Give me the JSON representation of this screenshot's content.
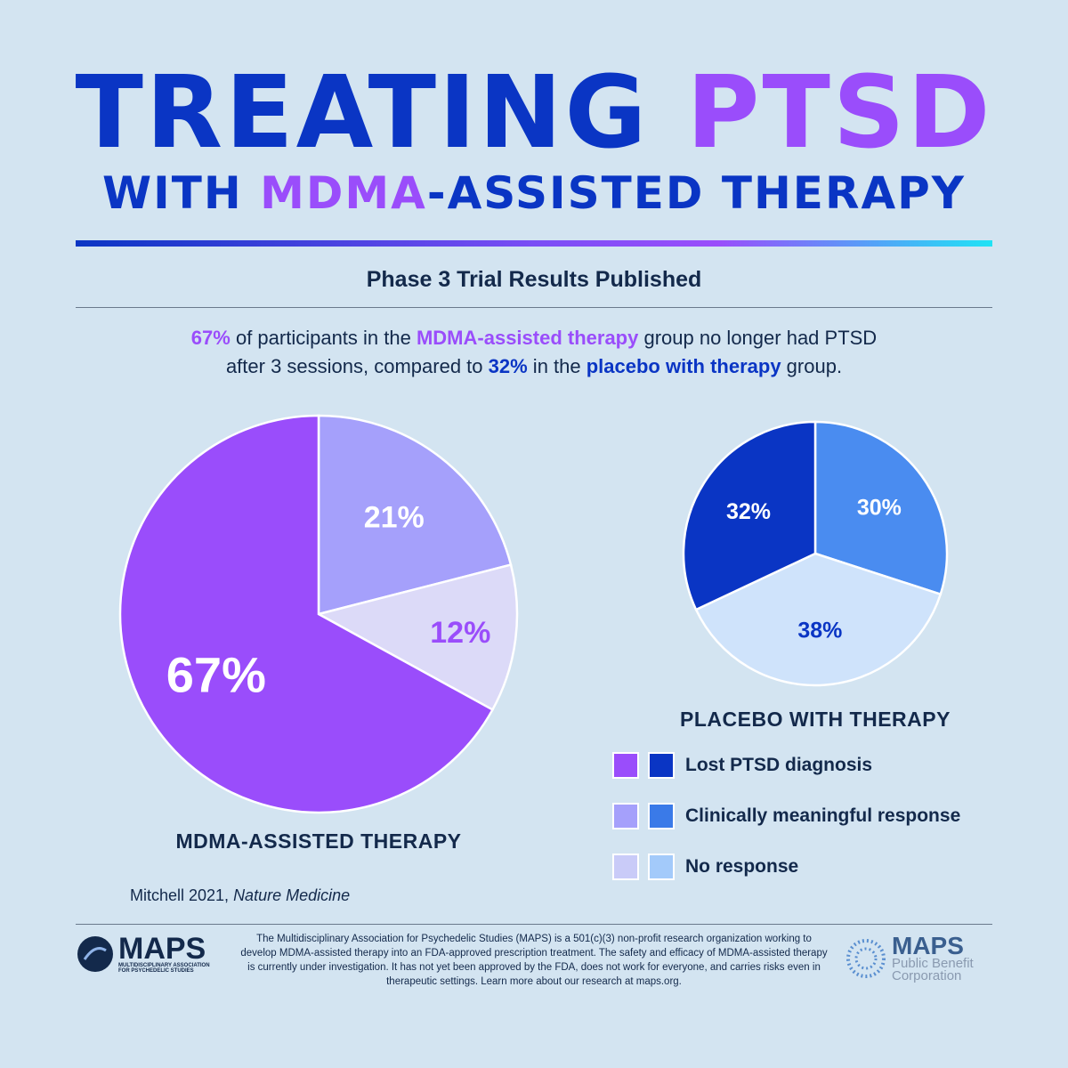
{
  "title": {
    "line1_a": "TREATING ",
    "line1_b": "PTSD",
    "line2_a": "WITH ",
    "line2_b": "MDMA",
    "line2_c": "-ASSISTED THERAPY"
  },
  "subtitle": "Phase 3 Trial Results Published",
  "description": {
    "p1": "67%",
    "p2": " of participants in the ",
    "p3": "MDMA-assisted therapy",
    "p4": " group no longer had PTSD",
    "p5": "after 3 sessions, compared to ",
    "p6": "32%",
    "p7": " in the ",
    "p8": "placebo with therapy",
    "p9": " group."
  },
  "colors": {
    "title_blue": "#0a35c4",
    "title_purple": "#9a4dfb",
    "text": "#13294b"
  },
  "chart_data": [
    {
      "type": "pie",
      "title": "MDMA-ASSISTED THERAPY",
      "categories": [
        "Clinically meaningful response",
        "No response",
        "Lost PTSD diagnosis"
      ],
      "values": [
        21,
        12,
        67
      ],
      "labels": [
        "21%",
        "12%",
        "67%"
      ],
      "colors": [
        "#a5a0fb",
        "#dcdaf8",
        "#9a4dfb"
      ],
      "label_colors": [
        "#ffffff",
        "#9a4dfb",
        "#ffffff"
      ]
    },
    {
      "type": "pie",
      "title": "PLACEBO WITH THERAPY",
      "categories": [
        "Clinically meaningful response",
        "No response",
        "Lost PTSD diagnosis"
      ],
      "values": [
        30,
        38,
        32
      ],
      "labels": [
        "30%",
        "38%",
        "32%"
      ],
      "colors": [
        "#4a8cf0",
        "#cfe3fb",
        "#0a35c4"
      ],
      "label_colors": [
        "#ffffff",
        "#0a35c4",
        "#ffffff"
      ]
    }
  ],
  "legend": [
    {
      "label": "Lost PTSD diagnosis",
      "c1": "#9a4dfb",
      "c2": "#0a35c4"
    },
    {
      "label": "Clinically meaningful response",
      "c1": "#a5a0fb",
      "c2": "#3a7ae8"
    },
    {
      "label": "No response",
      "c1": "#c9cbf8",
      "c2": "#a3cafa"
    }
  ],
  "citation": {
    "author": "Mitchell 2021, ",
    "journal": "Nature Medicine"
  },
  "footer": {
    "text": "The Multidisciplinary Association for Psychedelic Studies (MAPS) is a 501(c)(3) non-profit research organization working to develop MDMA-assisted therapy into an FDA-approved prescription treatment. The safety and efficacy of MDMA-assisted therapy is currently under investigation. It has not yet been approved by the FDA, does not work for everyone, and carries risks even in therapeutic settings. Learn more about our research at maps.org."
  },
  "logos": {
    "left_name": "MAPS",
    "left_sub": "MULTIDISCIPLINARY ASSOCIATION FOR PSYCHEDELIC STUDIES",
    "right_name": "MAPS",
    "right_sub": "Public Benefit Corporation"
  }
}
